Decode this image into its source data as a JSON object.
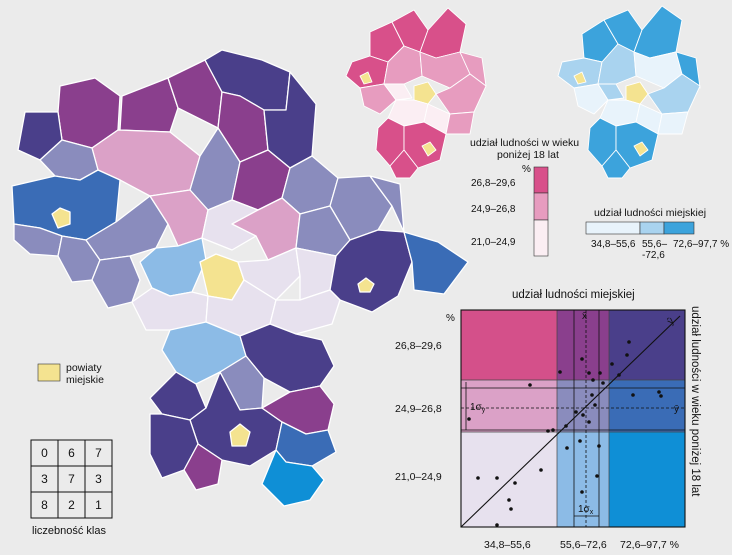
{
  "colors": {
    "urban_palette": [
      "#e8f3fb",
      "#a9d3ef",
      "#3ca3dc"
    ],
    "youth_palette": [
      "#fbeef3",
      "#e79cbf",
      "#d8508a"
    ],
    "bivariate": [
      [
        "#e7e1ee",
        "#8cbbe6",
        "#0f8fd6"
      ],
      [
        "#dba1c7",
        "#8a8cbd",
        "#3a6cb6"
      ],
      [
        "#d4508a",
        "#8a3f8d",
        "#4a3f8a"
      ]
    ],
    "city": "#f4e390",
    "outline": "#ffffff",
    "neutral": "#ebebeb"
  },
  "legend_youth": {
    "title_line1": "udział ludności w wieku",
    "title_line2": "poniżej 18 lat",
    "unit": "%",
    "classes": [
      "26,8–29,6",
      "24,9–26,8",
      "21,0–24,9"
    ]
  },
  "legend_urban": {
    "title": "udział ludności miejskiej",
    "classes": [
      "34,8–55,6",
      "55,6–\n-72,6",
      "72,6–97,7 %"
    ],
    "classes_line": [
      "34,8–55,6",
      "55,6–",
      "-72,6",
      "72,6–97,7 %"
    ]
  },
  "legend_cities": {
    "line1": "powiaty",
    "line2": "miejskie"
  },
  "class_counts": {
    "title": "liczebność klas",
    "rows": [
      [
        "0",
        "6",
        "7"
      ],
      [
        "3",
        "7",
        "3"
      ],
      [
        "8",
        "2",
        "1"
      ]
    ]
  },
  "scatter": {
    "title": "udział ludności miejskiej",
    "y_axis_title": "udział ludności w wieku poniżej 18 lat",
    "unit": "%",
    "y_classes": [
      "26,8–29,6",
      "24,9–26,8",
      "21,0–24,9"
    ],
    "x_classes": [
      "34,8–55,6",
      "55,6–72,6",
      "72,6–97,7 %"
    ],
    "sigma_y": "1σ",
    "sigma_y_sub": "y",
    "sigma_x": "1σ",
    "sigma_x_sub": "x",
    "mean_x": "x̄",
    "mean_y": "ȳ",
    "regression": "ŷ"
  }
}
